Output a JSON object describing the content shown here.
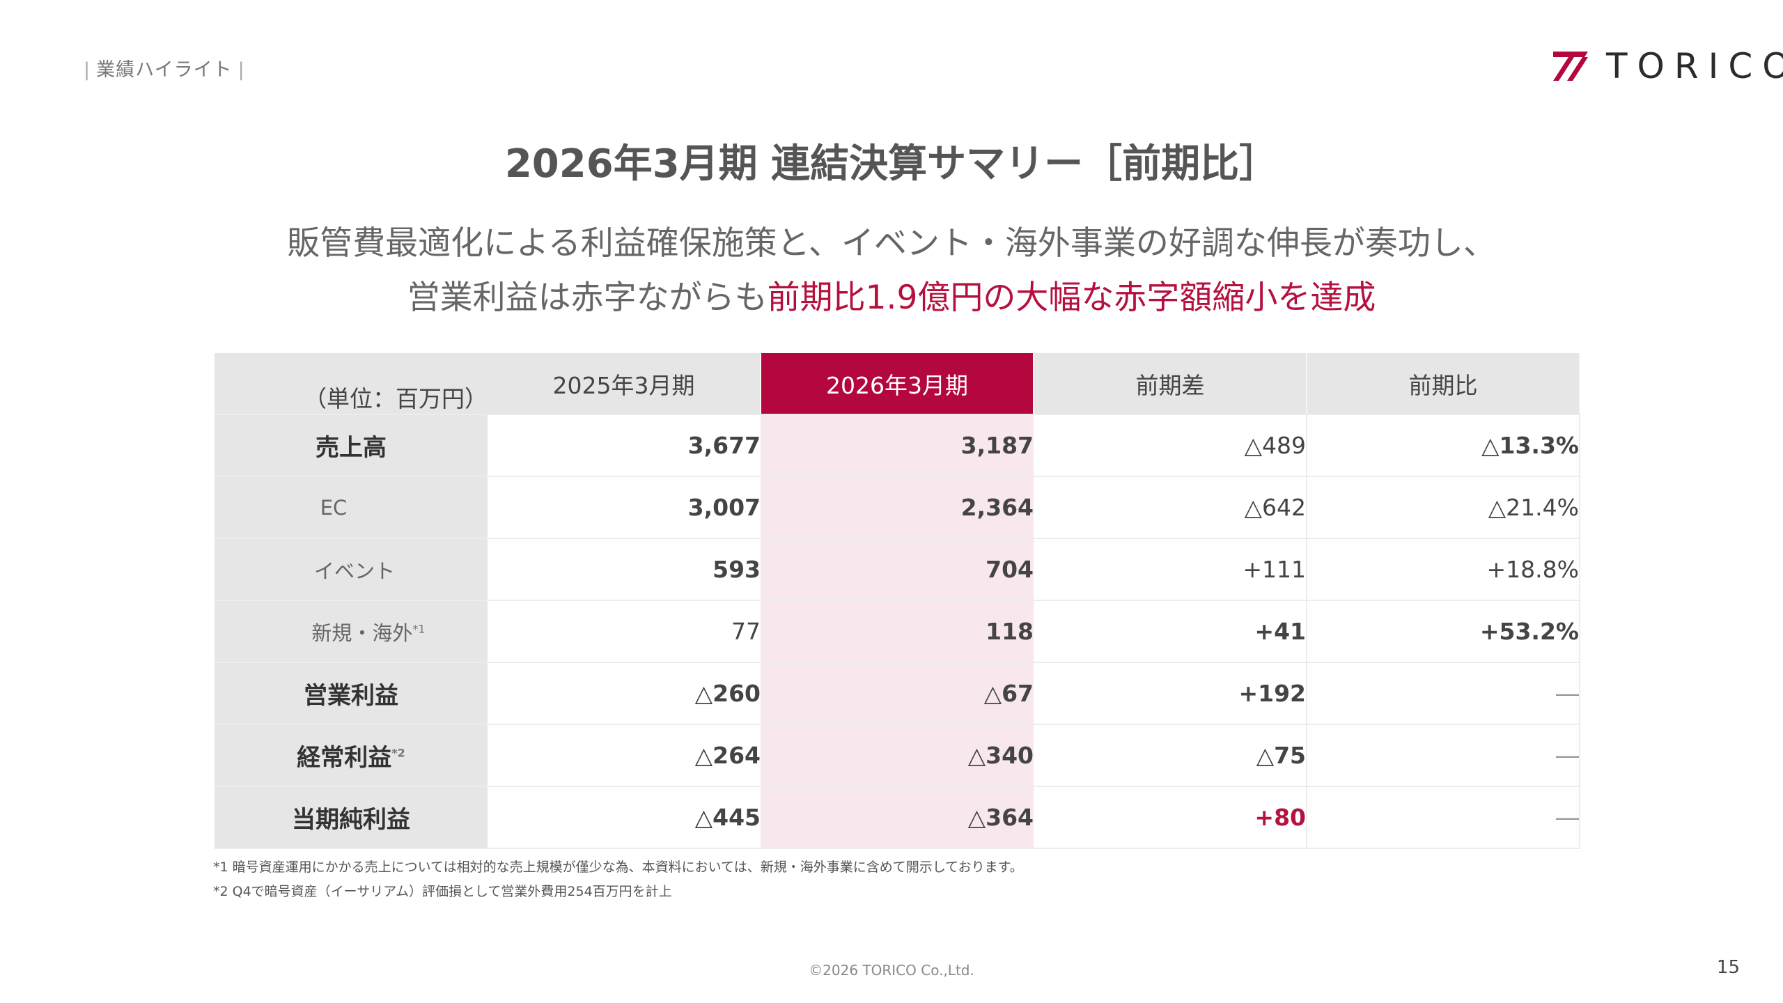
{
  "section_label": "業績ハイライト",
  "logo": {
    "text": "TORICO",
    "mark_color": "#b3073d"
  },
  "title": "2026年3月期 連結決算サマリー［前期比］",
  "lead": {
    "line1": "販管費最適化による利益確保施策と、イベント・海外事業の好調な伸長が奏功し、",
    "line2_prefix": "営業利益は赤字ながらも",
    "line2_highlight": "前期比1.9億円の大幅な赤字額縮小を達成"
  },
  "table": {
    "unit": "（単位：百万円）",
    "headers": [
      "2025年3月期",
      "2026年3月期",
      "前期差",
      "前期比"
    ],
    "rows": [
      {
        "label": "売上高",
        "values": [
          "3,677",
          "3,187",
          "△489",
          "△13.3%"
        ]
      },
      {
        "label": "EC",
        "values": [
          "3,007",
          "2,364",
          "△642",
          "△21.4%"
        ]
      },
      {
        "label": "イベント",
        "values": [
          "593",
          "704",
          "+111",
          "+18.8%"
        ]
      },
      {
        "label": "新規・海外",
        "note": "*1",
        "values": [
          "77",
          "118",
          "+41",
          "+53.2%"
        ]
      },
      {
        "label": "営業利益",
        "values": [
          "△260",
          "△67",
          "+192",
          "―"
        ]
      },
      {
        "label": "経常利益",
        "note": "*2",
        "values": [
          "△264",
          "△340",
          "△75",
          "―"
        ]
      },
      {
        "label": "当期純利益",
        "values": [
          "△445",
          "△364",
          "+80",
          "―"
        ]
      }
    ]
  },
  "notes": [
    "*1 暗号資産運用にかかる売上については相対的な売上規模が僅少な為、本資料においては、新規・海外事業に含めて開示しております。",
    "*2 Q4で暗号資産（イーサリアム）評価損として営業外費用254百万円を計上"
  ],
  "copyright": "©2026 TORICO Co.,Ltd.",
  "page_number": "15",
  "colors": {
    "accent": "#b3073d",
    "accent_light": "#f8e8ed",
    "header_gray": "#e6e6e6"
  }
}
